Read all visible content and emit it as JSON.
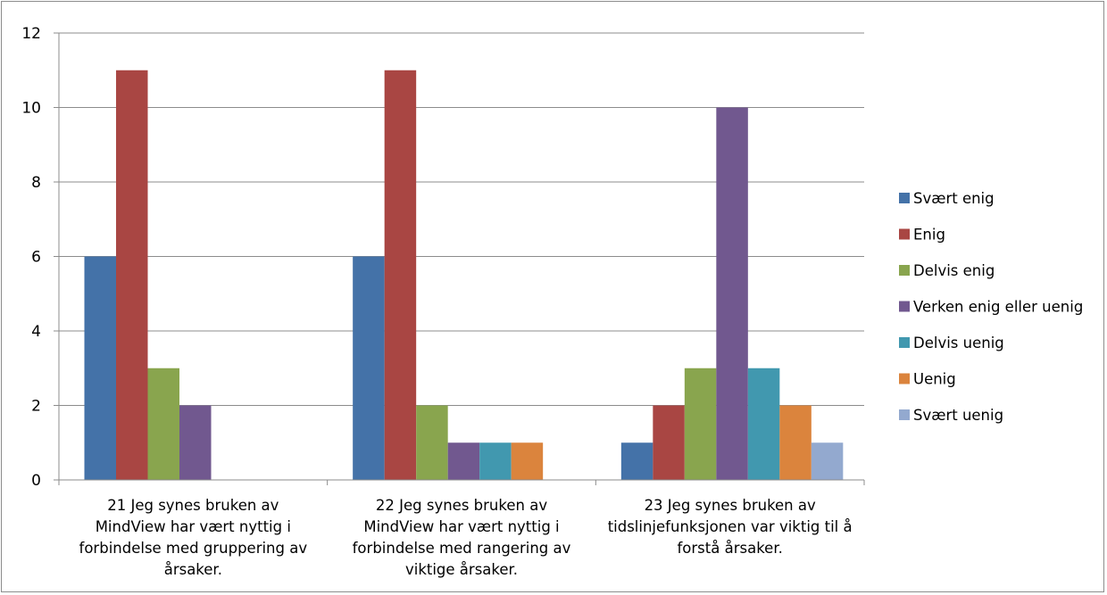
{
  "chart_data": {
    "type": "bar",
    "ylim": [
      0,
      12
    ],
    "yticks": [
      0,
      2,
      4,
      6,
      8,
      10,
      12
    ],
    "grid": true,
    "legend_position": "right",
    "categories": [
      [
        "21 Jeg synes bruken av",
        "MindView har vært nyttig i",
        "forbindelse med gruppering av",
        "årsaker."
      ],
      [
        "22 Jeg synes bruken av",
        "MindView har vært nyttig i",
        "forbindelse med rangering av",
        "viktige årsaker."
      ],
      [
        "23 Jeg synes bruken av",
        "tidslinjefunksjonen var viktig til å",
        "forstå årsaker."
      ]
    ],
    "series": [
      {
        "name": "Svært enig",
        "color": "#4472a8",
        "values": [
          6,
          6,
          1
        ]
      },
      {
        "name": "Enig",
        "color": "#a94643",
        "values": [
          11,
          11,
          2
        ]
      },
      {
        "name": "Delvis enig",
        "color": "#89a54e",
        "values": [
          3,
          2,
          3
        ]
      },
      {
        "name": "Verken enig eller uenig",
        "color": "#71588f",
        "values": [
          2,
          1,
          10
        ]
      },
      {
        "name": "Delvis uenig",
        "color": "#4198af",
        "values": [
          0,
          1,
          3
        ]
      },
      {
        "name": "Uenig",
        "color": "#db843d",
        "values": [
          0,
          1,
          2
        ]
      },
      {
        "name": "Svært uenig",
        "color": "#93a9cf",
        "values": [
          0,
          0,
          1
        ]
      }
    ]
  }
}
